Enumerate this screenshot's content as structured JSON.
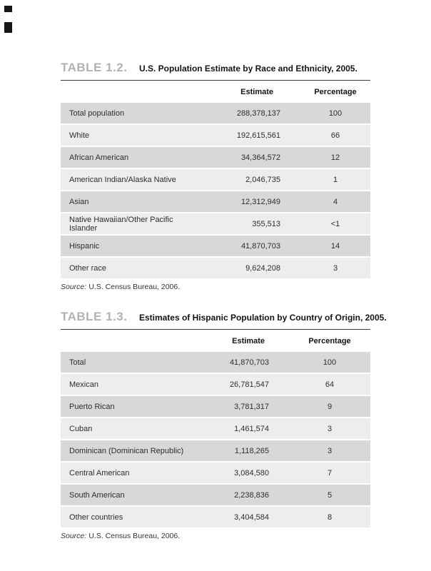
{
  "tables": [
    {
      "label": "TABLE 1.2.",
      "title": "U.S. Population Estimate by Race and Ethnicity, 2005.",
      "columns": {
        "estimate": "Estimate",
        "percentage": "Percentage"
      },
      "rows": [
        {
          "category": "Total population",
          "estimate": "288,378,137",
          "percentage": "100"
        },
        {
          "category": "White",
          "estimate": "192,615,561",
          "percentage": "66"
        },
        {
          "category": "African American",
          "estimate": "34,364,572",
          "percentage": "12"
        },
        {
          "category": "American Indian/Alaska Native",
          "estimate": "2,046,735",
          "percentage": "1"
        },
        {
          "category": "Asian",
          "estimate": "12,312,949",
          "percentage": "4"
        },
        {
          "category": "Native Hawaiian/Other Pacific Islander",
          "estimate": "355,513",
          "percentage": "<1"
        },
        {
          "category": "Hispanic",
          "estimate": "41,870,703",
          "percentage": "14"
        },
        {
          "category": "Other race",
          "estimate": "9,624,208",
          "percentage": "3"
        }
      ],
      "source": {
        "label": "Source:",
        "text": "U.S. Census Bureau, 2006."
      }
    },
    {
      "label": "TABLE 1.3.",
      "title": "Estimates of Hispanic Population by Country of Origin, 2005.",
      "columns": {
        "estimate": "Estimate",
        "percentage": "Percentage"
      },
      "rows": [
        {
          "category": "Total",
          "estimate": "41,870,703",
          "percentage": "100"
        },
        {
          "category": "Mexican",
          "estimate": "26,781,547",
          "percentage": "64"
        },
        {
          "category": "Puerto Rican",
          "estimate": "3,781,317",
          "percentage": "9"
        },
        {
          "category": "Cuban",
          "estimate": "1,461,574",
          "percentage": "3"
        },
        {
          "category": "Dominican (Dominican Republic)",
          "estimate": "1,118,265",
          "percentage": "3"
        },
        {
          "category": "Central American",
          "estimate": "3,084,580",
          "percentage": "7"
        },
        {
          "category": "South American",
          "estimate": "2,238,836",
          "percentage": "5"
        },
        {
          "category": "Other countries",
          "estimate": "3,404,584",
          "percentage": "8"
        }
      ],
      "source": {
        "label": "Source:",
        "text": "U.S. Census Bureau, 2006."
      }
    }
  ],
  "colors": {
    "row_shade_dark": "#d8d8d8",
    "row_shade_light": "#ededed",
    "table_label_gray": "#b2b2b2",
    "rule": "#3d3d3d"
  }
}
